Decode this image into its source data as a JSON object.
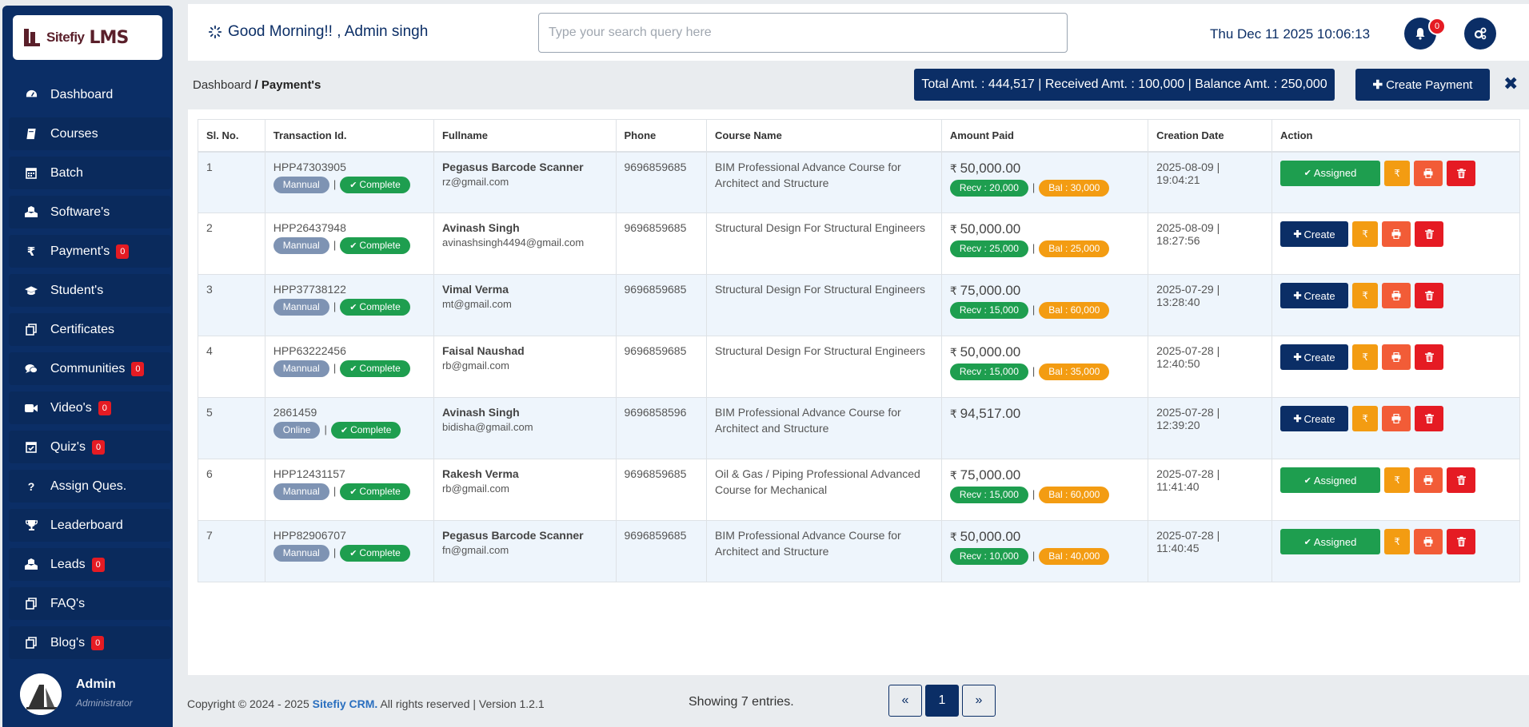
{
  "brand": {
    "name": "Sitefiy",
    "suffix": "LMS"
  },
  "sidebar": {
    "items": [
      {
        "label": "Dashboard",
        "icon": "dashboard-icon",
        "badge": null
      },
      {
        "label": "Courses",
        "icon": "book-icon",
        "badge": null
      },
      {
        "label": "Batch",
        "icon": "calendar-icon",
        "badge": null
      },
      {
        "label": "Software's",
        "icon": "cubes-icon",
        "badge": null
      },
      {
        "label": "Payment's",
        "icon": "rupee-icon",
        "badge": "0"
      },
      {
        "label": "Student's",
        "icon": "graduation-cap-icon",
        "badge": null
      },
      {
        "label": "Certificates",
        "icon": "copy-icon",
        "badge": null
      },
      {
        "label": "Communities",
        "icon": "comments-icon",
        "badge": "0"
      },
      {
        "label": "Video's",
        "icon": "video-icon",
        "badge": "0"
      },
      {
        "label": "Quiz's",
        "icon": "calendar-check-icon",
        "badge": "0"
      },
      {
        "label": "Assign Ques.",
        "icon": "question-icon",
        "badge": null
      },
      {
        "label": "Leaderboard",
        "icon": "trophy-icon",
        "badge": null
      },
      {
        "label": "Leads",
        "icon": "cubes-icon",
        "badge": "0"
      },
      {
        "label": "FAQ's",
        "icon": "copy-icon",
        "badge": null
      },
      {
        "label": "Blog's",
        "icon": "copy-icon",
        "badge": "0"
      }
    ],
    "admin": {
      "name": "Admin",
      "role": "Administrator"
    }
  },
  "header": {
    "greeting": "Good Morning!! , Admin singh",
    "search_placeholder": "Type your search query here",
    "datetime": "Thu Dec 11 2025 10:06:13",
    "notifications": "0"
  },
  "subbar": {
    "breadcrumb_root": "Dashboard",
    "breadcrumb_sep": " / ",
    "breadcrumb_current": "Payment's",
    "totals": "Total Amt. : 444,517 | Received Amt. : 100,000 | Balance Amt. : 250,000",
    "create_label": "Create Payment",
    "close_glyph": "✖"
  },
  "table": {
    "columns": [
      "Sl. No.",
      "Transaction Id.",
      "Fullname",
      "Phone",
      "Course Name",
      "Amount Paid",
      "Creation Date",
      "Action"
    ],
    "rows": [
      {
        "sl": "1",
        "txn": "HPP47303905",
        "mode": "Mannual",
        "status": "Complete",
        "name": "Pegasus Barcode Scanner",
        "email": "rz@gmail.com",
        "phone": "9696859685",
        "course": "BIM Professional Advance Course for Architect and Structure",
        "amount": "50,000.00",
        "recv": "Recv : 20,000",
        "bal": "Bal : 30,000",
        "date": "2025-08-09 | 19:04:21",
        "action": "Assigned"
      },
      {
        "sl": "2",
        "txn": "HPP26437948",
        "mode": "Mannual",
        "status": "Complete",
        "name": "Avinash Singh",
        "email": "avinashsingh4494@gmail.com",
        "phone": "9696859685",
        "course": "Structural Design For Structural Engineers",
        "amount": "50,000.00",
        "recv": "Recv : 25,000",
        "bal": "Bal : 25,000",
        "date": "2025-08-09 | 18:27:56",
        "action": "Create"
      },
      {
        "sl": "3",
        "txn": "HPP37738122",
        "mode": "Mannual",
        "status": "Complete",
        "name": "Vimal Verma",
        "email": "mt@gmail.com",
        "phone": "9696859685",
        "course": "Structural Design For Structural Engineers",
        "amount": "75,000.00",
        "recv": "Recv : 15,000",
        "bal": "Bal : 60,000",
        "date": "2025-07-29 | 13:28:40",
        "action": "Create"
      },
      {
        "sl": "4",
        "txn": "HPP63222456",
        "mode": "Mannual",
        "status": "Complete",
        "name": "Faisal Naushad",
        "email": "rb@gmail.com",
        "phone": "9696859685",
        "course": "Structural Design For Structural Engineers",
        "amount": "50,000.00",
        "recv": "Recv : 15,000",
        "bal": "Bal : 35,000",
        "date": "2025-07-28 | 12:40:50",
        "action": "Create"
      },
      {
        "sl": "5",
        "txn": "2861459",
        "mode": "Online",
        "status": "Complete",
        "name": "Avinash Singh",
        "email": "bidisha@gmail.com",
        "phone": "9696858596",
        "course": "BIM Professional Advance Course for Architect and Structure",
        "amount": "94,517.00",
        "recv": null,
        "bal": null,
        "date": "2025-07-28 | 12:39:20",
        "action": "Create"
      },
      {
        "sl": "6",
        "txn": "HPP12431157",
        "mode": "Mannual",
        "status": "Complete",
        "name": "Rakesh Verma",
        "email": "rb@gmail.com",
        "phone": "9696859685",
        "course": "Oil & Gas / Piping Professional Advanced Course for Mechanical",
        "amount": "75,000.00",
        "recv": "Recv : 15,000",
        "bal": "Bal : 60,000",
        "date": "2025-07-28 | 11:41:40",
        "action": "Assigned"
      },
      {
        "sl": "7",
        "txn": "HPP82906707",
        "mode": "Mannual",
        "status": "Complete",
        "name": "Pegasus Barcode Scanner",
        "email": "fn@gmail.com",
        "phone": "9696859685",
        "course": "BIM Professional Advance Course for Architect and Structure",
        "amount": "50,000.00",
        "recv": "Recv : 10,000",
        "bal": "Bal : 40,000",
        "date": "2025-07-28 | 11:40:45",
        "action": "Assigned"
      }
    ]
  },
  "footer": {
    "copyright_prefix": "Copyright © 2024 - 2025 ",
    "copyright_brand": "Sitefiy CRM.",
    "copyright_suffix": " All rights reserved | Version 1.2.1",
    "showing": "Showing 7 entries.",
    "page": "1",
    "prev_glyph": "«",
    "next_glyph": "»"
  },
  "colors": {
    "navy": "#0b2e66",
    "green": "#1e9e4f",
    "orange": "#f39c12",
    "red": "#e51b23",
    "tomato": "#f25c37"
  }
}
